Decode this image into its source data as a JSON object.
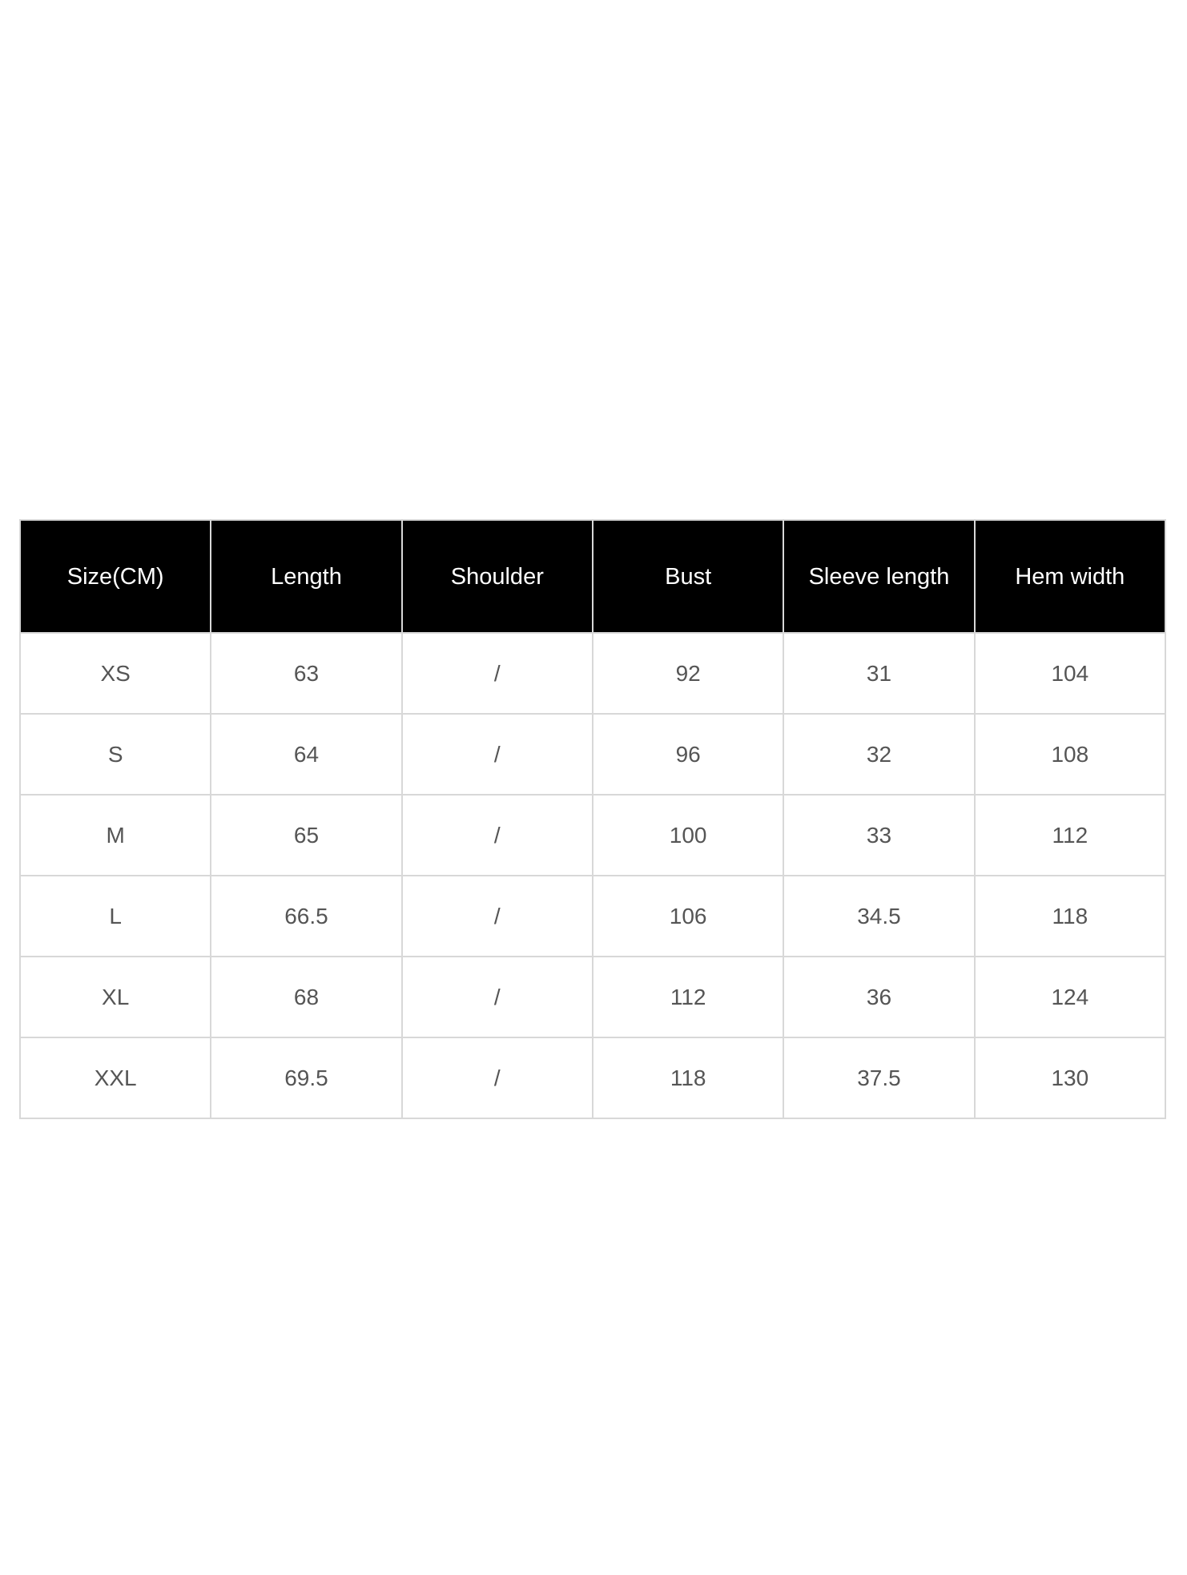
{
  "table": {
    "headers": [
      "Size(CM)",
      "Length",
      "Shoulder",
      "Bust",
      "Sleeve length",
      "Hem width"
    ],
    "rows": [
      [
        "XS",
        "63",
        "/",
        "92",
        "31",
        "104"
      ],
      [
        "S",
        "64",
        "/",
        "96",
        "32",
        "108"
      ],
      [
        "M",
        "65",
        "/",
        "100",
        "33",
        "112"
      ],
      [
        "L",
        "66.5",
        "/",
        "106",
        "34.5",
        "118"
      ],
      [
        "XL",
        "68",
        "/",
        "112",
        "36",
        "124"
      ],
      [
        "XXL",
        "69.5",
        "/",
        "118",
        "37.5",
        "130"
      ]
    ]
  }
}
